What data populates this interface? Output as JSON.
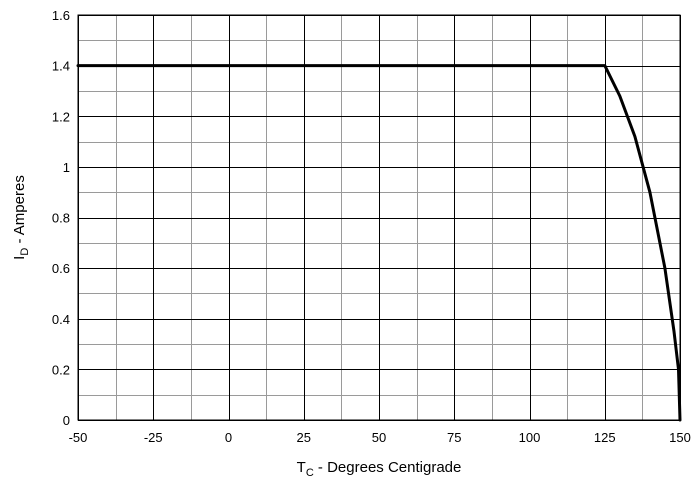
{
  "chart_data": {
    "type": "line",
    "title": "",
    "xlabel": {
      "main": "T",
      "sub": "C",
      "rest": " - Degrees Centigrade"
    },
    "ylabel": {
      "main": "I",
      "sub": "D",
      "rest": " - Amperes"
    },
    "xlim": [
      -50,
      150
    ],
    "ylim": [
      0,
      1.6
    ],
    "x_ticks": [
      "-50",
      "-25",
      "0",
      "25",
      "50",
      "75",
      "100",
      "125",
      "150"
    ],
    "y_ticks": [
      "0",
      "0.2",
      "0.4",
      "0.6",
      "0.8",
      "1",
      "1.2",
      "1.4",
      "1.6"
    ],
    "grid": true,
    "legend": "none",
    "series": [
      {
        "color": "#000000",
        "x": [
          -50,
          125,
          130,
          135,
          140,
          145,
          148,
          149.5,
          150
        ],
        "y": [
          1.4,
          1.4,
          1.28,
          1.12,
          0.9,
          0.6,
          0.35,
          0.2,
          0
        ]
      }
    ]
  }
}
